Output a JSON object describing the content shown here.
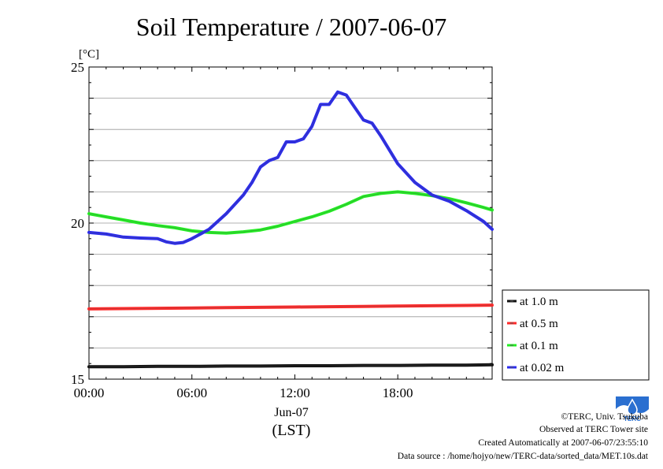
{
  "title": "Soil Temperature / 2007-06-07",
  "chart_data": {
    "type": "line",
    "title": "Soil Temperature / 2007-06-07",
    "ylabel": "[°C]",
    "xlabel": "(LST)",
    "x_date_label": "Jun-07",
    "x_ticks": [
      "00:00",
      "06:00",
      "12:00",
      "18:00"
    ],
    "x_tick_hours": [
      0,
      6,
      12,
      18
    ],
    "xlim_hours": [
      0,
      23.5
    ],
    "y_ticks": [
      15,
      20,
      25
    ],
    "ylim": [
      15,
      25
    ],
    "grid": true,
    "legend_position": "right",
    "series": [
      {
        "name": "at 1.0 m",
        "color": "#111111",
        "x": [
          0,
          2,
          4,
          6,
          8,
          10,
          12,
          14,
          16,
          18,
          20,
          22,
          23.5
        ],
        "y": [
          15.4,
          15.4,
          15.41,
          15.41,
          15.42,
          15.42,
          15.43,
          15.43,
          15.44,
          15.44,
          15.45,
          15.45,
          15.46
        ]
      },
      {
        "name": "at 0.5 m",
        "color": "#ff2a2a",
        "x": [
          0,
          2,
          4,
          6,
          8,
          10,
          12,
          14,
          16,
          18,
          20,
          22,
          23.5
        ],
        "y": [
          17.25,
          17.26,
          17.27,
          17.28,
          17.29,
          17.3,
          17.31,
          17.32,
          17.33,
          17.34,
          17.35,
          17.36,
          17.37
        ]
      },
      {
        "name": "at 0.1 m",
        "color": "#22ee22",
        "x": [
          0,
          1,
          2,
          3,
          4,
          5,
          6,
          7,
          8,
          9,
          10,
          11,
          12,
          13,
          14,
          15,
          16,
          17,
          18,
          19,
          20,
          21,
          22,
          23,
          23.5
        ],
        "y": [
          20.3,
          20.2,
          20.1,
          20.0,
          19.92,
          19.85,
          19.75,
          19.7,
          19.68,
          19.72,
          19.78,
          19.9,
          20.05,
          20.2,
          20.38,
          20.6,
          20.85,
          20.95,
          21.0,
          20.95,
          20.88,
          20.78,
          20.65,
          20.5,
          20.42
        ]
      },
      {
        "name": "at 0.02 m",
        "color": "#2a2aee",
        "x": [
          0,
          1,
          2,
          3,
          4,
          4.5,
          5,
          5.5,
          6,
          7,
          8,
          9,
          9.5,
          10,
          10.5,
          11,
          11.5,
          12,
          12.5,
          13,
          13.5,
          14,
          14.5,
          15,
          15.5,
          16,
          16.5,
          17,
          18,
          19,
          20,
          21,
          22,
          23,
          23.5
        ],
        "y": [
          19.7,
          19.65,
          19.55,
          19.52,
          19.5,
          19.4,
          19.35,
          19.38,
          19.5,
          19.8,
          20.3,
          20.9,
          21.3,
          21.8,
          22.0,
          22.1,
          22.6,
          22.6,
          22.7,
          23.1,
          23.8,
          23.8,
          24.2,
          24.1,
          23.7,
          23.3,
          23.2,
          22.8,
          21.9,
          21.3,
          20.9,
          20.7,
          20.4,
          20.05,
          19.8
        ]
      }
    ]
  },
  "footer": {
    "credit": "©TERC, Univ. Tsukuba",
    "observed": "Observed at TERC Tower site",
    "created": "Created Automatically at 2007-06-07/23:55:10",
    "source": "Data source : /home/hojyo/new/TERC-data/sorted_data/MET.10s.dat"
  },
  "logo_text": "TERC"
}
